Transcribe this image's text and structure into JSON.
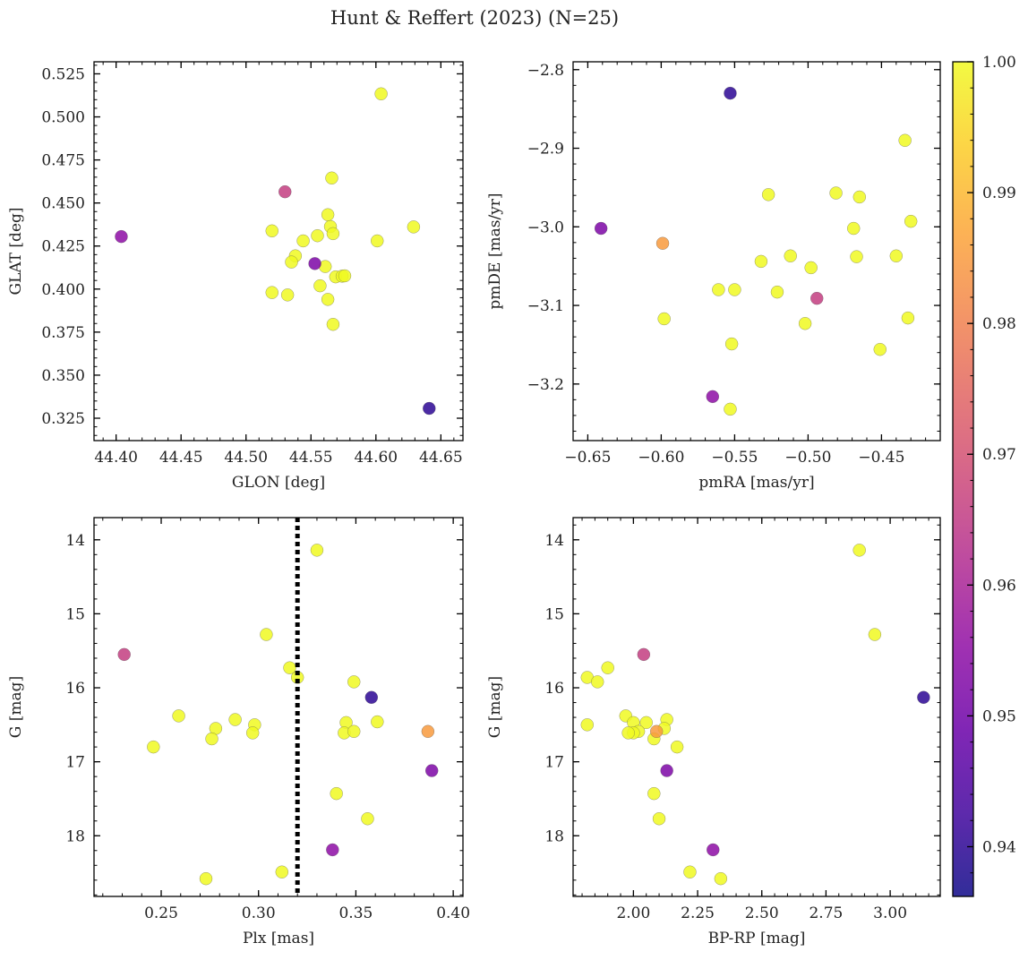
{
  "figure": {
    "title": "Hunt & Reffert (2023) (N=25)"
  },
  "colorbar": {
    "colormap": "plasma",
    "range": [
      0.9362,
      1.0
    ],
    "ticks": [
      "0.94",
      "0.95",
      "0.96",
      "0.97",
      "0.98",
      "0.99",
      "1.00"
    ],
    "tick_values": [
      0.94,
      0.95,
      0.96,
      0.97,
      0.98,
      0.99,
      1.0
    ]
  },
  "chart_data": [
    {
      "type": "scatter",
      "panel": "top-left",
      "xlabel": "GLON [deg]",
      "ylabel": "GLAT [deg]",
      "xlim": [
        44.383,
        44.667
      ],
      "ylim": [
        0.312,
        0.532
      ],
      "xticks": [
        "44.40",
        "44.45",
        "44.50",
        "44.55",
        "44.60",
        "44.65"
      ],
      "xtick_values": [
        44.4,
        44.45,
        44.5,
        44.55,
        44.6,
        44.65
      ],
      "yticks": [
        "0.325",
        "0.350",
        "0.375",
        "0.400",
        "0.425",
        "0.450",
        "0.475",
        "0.500",
        "0.525"
      ],
      "ytick_values": [
        0.325,
        0.35,
        0.375,
        0.4,
        0.425,
        0.45,
        0.475,
        0.5,
        0.525
      ],
      "x_minor_step": 0.01,
      "y_minor_step": 0.005,
      "points": [
        {
          "x": 44.404,
          "y": 0.4305,
          "c": 0.955
        },
        {
          "x": 44.53,
          "y": 0.4565,
          "c": 0.966
        },
        {
          "x": 44.553,
          "y": 0.4148,
          "c": 0.952
        },
        {
          "x": 44.641,
          "y": 0.3307,
          "c": 0.94
        },
        {
          "x": 44.604,
          "y": 0.5134,
          "c": 1.0
        },
        {
          "x": 44.566,
          "y": 0.4645,
          "c": 1.0
        },
        {
          "x": 44.563,
          "y": 0.4432,
          "c": 1.0
        },
        {
          "x": 44.565,
          "y": 0.4363,
          "c": 1.0
        },
        {
          "x": 44.567,
          "y": 0.4322,
          "c": 1.0
        },
        {
          "x": 44.52,
          "y": 0.4338,
          "c": 1.0
        },
        {
          "x": 44.555,
          "y": 0.431,
          "c": 1.0
        },
        {
          "x": 44.544,
          "y": 0.428,
          "c": 1.0
        },
        {
          "x": 44.601,
          "y": 0.428,
          "c": 1.0
        },
        {
          "x": 44.629,
          "y": 0.4361,
          "c": 1.0
        },
        {
          "x": 44.538,
          "y": 0.4193,
          "c": 1.0
        },
        {
          "x": 44.535,
          "y": 0.4157,
          "c": 1.0
        },
        {
          "x": 44.561,
          "y": 0.4131,
          "c": 1.0
        },
        {
          "x": 44.569,
          "y": 0.4071,
          "c": 1.0
        },
        {
          "x": 44.574,
          "y": 0.4075,
          "c": 1.0
        },
        {
          "x": 44.576,
          "y": 0.4077,
          "c": 1.0
        },
        {
          "x": 44.557,
          "y": 0.4019,
          "c": 1.0
        },
        {
          "x": 44.52,
          "y": 0.398,
          "c": 1.0
        },
        {
          "x": 44.532,
          "y": 0.3966,
          "c": 1.0
        },
        {
          "x": 44.563,
          "y": 0.394,
          "c": 1.0
        },
        {
          "x": 44.567,
          "y": 0.3795,
          "c": 1.0
        }
      ]
    },
    {
      "type": "scatter",
      "panel": "top-right",
      "xlabel": "pmRA [mas/yr]",
      "ylabel": "pmDE [mas/yr]",
      "xlim": [
        -0.66,
        -0.41
      ],
      "ylim": [
        -3.272,
        -2.79
      ],
      "xticks": [
        "−0.65",
        "−0.60",
        "−0.55",
        "−0.50",
        "−0.45"
      ],
      "xtick_values": [
        -0.65,
        -0.6,
        -0.55,
        -0.5,
        -0.45
      ],
      "yticks": [
        "−3.2",
        "−3.1",
        "−3.0",
        "−2.9",
        "−2.8"
      ],
      "ytick_values": [
        -3.2,
        -3.1,
        -3.0,
        -2.9,
        -2.8
      ],
      "x_minor_step": 0.01,
      "y_minor_step": 0.02,
      "points": [
        {
          "x": -0.553,
          "y": -2.83,
          "c": 0.94
        },
        {
          "x": -0.641,
          "y": -3.002,
          "c": 0.952
        },
        {
          "x": -0.599,
          "y": -3.021,
          "c": 0.985
        },
        {
          "x": -0.494,
          "y": -3.091,
          "c": 0.966
        },
        {
          "x": -0.565,
          "y": -3.216,
          "c": 0.955
        },
        {
          "x": -0.434,
          "y": -2.89,
          "c": 1.0
        },
        {
          "x": -0.527,
          "y": -2.959,
          "c": 1.0
        },
        {
          "x": -0.481,
          "y": -2.957,
          "c": 1.0
        },
        {
          "x": -0.465,
          "y": -2.962,
          "c": 1.0
        },
        {
          "x": -0.43,
          "y": -2.993,
          "c": 1.0
        },
        {
          "x": -0.469,
          "y": -3.002,
          "c": 1.0
        },
        {
          "x": -0.467,
          "y": -3.038,
          "c": 1.0
        },
        {
          "x": -0.44,
          "y": -3.037,
          "c": 1.0
        },
        {
          "x": -0.512,
          "y": -3.037,
          "c": 1.0
        },
        {
          "x": -0.532,
          "y": -3.044,
          "c": 1.0
        },
        {
          "x": -0.498,
          "y": -3.052,
          "c": 1.0
        },
        {
          "x": -0.561,
          "y": -3.08,
          "c": 1.0
        },
        {
          "x": -0.55,
          "y": -3.08,
          "c": 1.0
        },
        {
          "x": -0.521,
          "y": -3.083,
          "c": 1.0
        },
        {
          "x": -0.598,
          "y": -3.117,
          "c": 1.0
        },
        {
          "x": -0.502,
          "y": -3.123,
          "c": 1.0
        },
        {
          "x": -0.432,
          "y": -3.116,
          "c": 1.0
        },
        {
          "x": -0.552,
          "y": -3.149,
          "c": 1.0
        },
        {
          "x": -0.451,
          "y": -3.156,
          "c": 1.0
        },
        {
          "x": -0.553,
          "y": -3.232,
          "c": 1.0
        }
      ]
    },
    {
      "type": "scatter",
      "panel": "bottom-left",
      "xlabel": "Plx [mas]",
      "ylabel": "G [mag]",
      "xlim": [
        0.2155,
        0.405
      ],
      "ylim": [
        18.82,
        13.7
      ],
      "y_inverted": true,
      "xticks": [
        "0.25",
        "0.30",
        "0.35",
        "0.40"
      ],
      "xtick_values": [
        0.25,
        0.3,
        0.35,
        0.4
      ],
      "yticks": [
        "14",
        "15",
        "16",
        "17",
        "18"
      ],
      "ytick_values": [
        14,
        15,
        16,
        17,
        18
      ],
      "x_minor_step": 0.01,
      "y_minor_step": 0.2,
      "vline": {
        "x": 0.32,
        "style": "dotted",
        "color": "#000000"
      },
      "points": [
        {
          "x": 0.231,
          "y": 15.55,
          "c": 0.966
        },
        {
          "x": 0.358,
          "y": 16.13,
          "c": 0.94
        },
        {
          "x": 0.387,
          "y": 16.59,
          "c": 0.985
        },
        {
          "x": 0.389,
          "y": 17.12,
          "c": 0.952
        },
        {
          "x": 0.338,
          "y": 18.19,
          "c": 0.955
        },
        {
          "x": 0.33,
          "y": 14.14,
          "c": 1.0
        },
        {
          "x": 0.304,
          "y": 15.28,
          "c": 1.0
        },
        {
          "x": 0.316,
          "y": 15.73,
          "c": 1.0
        },
        {
          "x": 0.32,
          "y": 15.86,
          "c": 1.0
        },
        {
          "x": 0.349,
          "y": 15.92,
          "c": 1.0
        },
        {
          "x": 0.259,
          "y": 16.38,
          "c": 1.0
        },
        {
          "x": 0.288,
          "y": 16.43,
          "c": 1.0
        },
        {
          "x": 0.278,
          "y": 16.55,
          "c": 1.0
        },
        {
          "x": 0.298,
          "y": 16.5,
          "c": 1.0
        },
        {
          "x": 0.297,
          "y": 16.61,
          "c": 1.0
        },
        {
          "x": 0.246,
          "y": 16.8,
          "c": 1.0
        },
        {
          "x": 0.276,
          "y": 16.69,
          "c": 1.0
        },
        {
          "x": 0.345,
          "y": 16.47,
          "c": 1.0
        },
        {
          "x": 0.361,
          "y": 16.46,
          "c": 1.0
        },
        {
          "x": 0.344,
          "y": 16.61,
          "c": 1.0
        },
        {
          "x": 0.349,
          "y": 16.59,
          "c": 1.0
        },
        {
          "x": 0.34,
          "y": 17.43,
          "c": 1.0
        },
        {
          "x": 0.356,
          "y": 17.77,
          "c": 1.0
        },
        {
          "x": 0.312,
          "y": 18.49,
          "c": 1.0
        },
        {
          "x": 0.273,
          "y": 18.58,
          "c": 1.0
        }
      ]
    },
    {
      "type": "scatter",
      "panel": "bottom-right",
      "xlabel": "BP-RP [mag]",
      "ylabel": "G [mag]",
      "xlim": [
        1.765,
        3.195
      ],
      "ylim": [
        18.82,
        13.7
      ],
      "y_inverted": true,
      "xticks": [
        "2.00",
        "2.25",
        "2.50",
        "2.75",
        "3.00"
      ],
      "xtick_values": [
        2.0,
        2.25,
        2.5,
        2.75,
        3.0
      ],
      "yticks": [
        "14",
        "15",
        "16",
        "17",
        "18"
      ],
      "ytick_values": [
        14,
        15,
        16,
        17,
        18
      ],
      "x_minor_step": 0.05,
      "y_minor_step": 0.2,
      "points": [
        {
          "x": 2.04,
          "y": 15.55,
          "c": 0.966
        },
        {
          "x": 3.13,
          "y": 16.13,
          "c": 0.94
        },
        {
          "x": 2.09,
          "y": 16.59,
          "c": 0.985
        },
        {
          "x": 2.13,
          "y": 17.12,
          "c": 0.952
        },
        {
          "x": 2.31,
          "y": 18.19,
          "c": 0.955
        },
        {
          "x": 2.88,
          "y": 14.14,
          "c": 1.0
        },
        {
          "x": 2.94,
          "y": 15.28,
          "c": 1.0
        },
        {
          "x": 1.9,
          "y": 15.73,
          "c": 1.0
        },
        {
          "x": 1.82,
          "y": 15.86,
          "c": 1.0
        },
        {
          "x": 1.86,
          "y": 15.92,
          "c": 1.0
        },
        {
          "x": 1.97,
          "y": 16.38,
          "c": 1.0
        },
        {
          "x": 2.13,
          "y": 16.43,
          "c": 1.0
        },
        {
          "x": 2.0,
          "y": 16.47,
          "c": 1.0
        },
        {
          "x": 2.05,
          "y": 16.47,
          "c": 1.0
        },
        {
          "x": 1.82,
          "y": 16.5,
          "c": 1.0
        },
        {
          "x": 2.02,
          "y": 16.59,
          "c": 1.0
        },
        {
          "x": 2.0,
          "y": 16.61,
          "c": 1.0
        },
        {
          "x": 1.98,
          "y": 16.61,
          "c": 1.0
        },
        {
          "x": 2.08,
          "y": 16.69,
          "c": 1.0
        },
        {
          "x": 2.17,
          "y": 16.8,
          "c": 1.0
        },
        {
          "x": 2.08,
          "y": 17.43,
          "c": 1.0
        },
        {
          "x": 2.1,
          "y": 17.77,
          "c": 1.0
        },
        {
          "x": 2.22,
          "y": 18.49,
          "c": 1.0
        },
        {
          "x": 2.34,
          "y": 18.58,
          "c": 1.0
        },
        {
          "x": 2.12,
          "y": 16.55,
          "c": 1.0
        }
      ]
    }
  ]
}
